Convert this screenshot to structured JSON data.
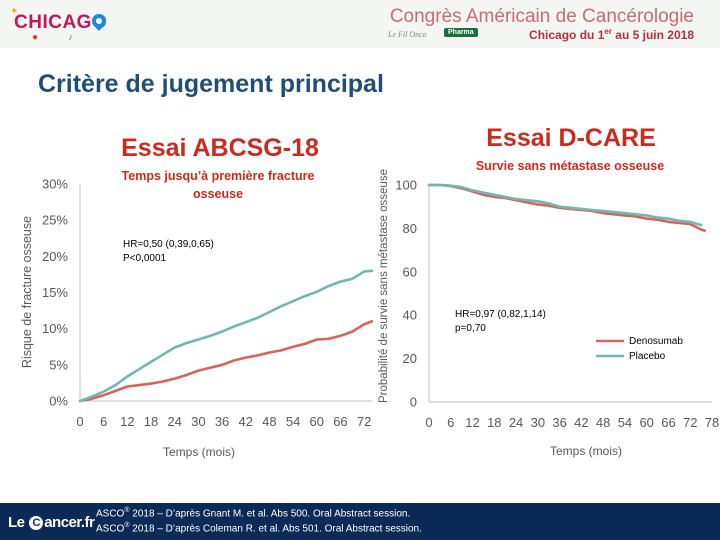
{
  "header": {
    "logo_text": "CHICAGO",
    "congress_title": "Congrès Américain de Cancérologie",
    "congress_sub_prefix": "Chicago du 1",
    "congress_sub_sup": "er",
    "congress_sub_suffix": " au 5 juin 2018",
    "fil_label": "Le Fil Onco",
    "pharma_label": "Pharma"
  },
  "slide": {
    "title": "Critère de jugement principal"
  },
  "colors": {
    "denosumab": "#d9635a",
    "placebo": "#6fb8b2",
    "title_blue": "#1f4e79",
    "essai_red": "#cc2a1e",
    "axis_text": "#595959"
  },
  "chart_data": [
    {
      "type": "line",
      "title": "Essai ABCSG-18",
      "subtitle": [
        "Temps jusqu’à première fracture",
        "osseuse"
      ],
      "xlabel": "Temps (mois)",
      "ylabel": "Risque de fracture osseuse",
      "xlim": [
        0,
        74
      ],
      "ylim": [
        0,
        30
      ],
      "x_ticks": [
        0,
        6,
        12,
        18,
        24,
        30,
        36,
        42,
        48,
        54,
        60,
        66,
        72
      ],
      "x_tick_labels": [
        "0",
        "6",
        "12",
        "18",
        "24",
        "30",
        "36",
        "42",
        "48",
        "54",
        "60",
        "66",
        "72"
      ],
      "y_ticks": [
        0,
        5,
        10,
        15,
        20,
        25,
        30
      ],
      "y_tick_labels": [
        "0%",
        "5%",
        "10%",
        "15%",
        "20%",
        "25%",
        "30%"
      ],
      "annotations": [
        "HR=0,50 (0,39,0,65)",
        "P<0,0001"
      ],
      "grid": false,
      "series": [
        {
          "color": "#d9635a",
          "x": [
            0,
            3,
            6,
            9,
            12,
            15,
            18,
            21,
            24,
            27,
            30,
            33,
            36,
            39,
            42,
            45,
            48,
            51,
            54,
            57,
            60,
            63,
            66,
            69,
            72,
            74
          ],
          "y": [
            0,
            0.3,
            0.8,
            1.4,
            2.0,
            2.2,
            2.4,
            2.7,
            3.1,
            3.6,
            4.2,
            4.6,
            5.0,
            5.6,
            6.0,
            6.3,
            6.7,
            7.0,
            7.5,
            7.9,
            8.5,
            8.6,
            9.0,
            9.6,
            10.6,
            11.0
          ]
        },
        {
          "color": "#6fb8b2",
          "x": [
            0,
            3,
            6,
            9,
            12,
            15,
            18,
            21,
            24,
            27,
            30,
            33,
            36,
            39,
            42,
            45,
            48,
            51,
            54,
            57,
            60,
            63,
            66,
            69,
            72,
            74
          ],
          "y": [
            0,
            0.6,
            1.3,
            2.2,
            3.4,
            4.4,
            5.4,
            6.4,
            7.4,
            8.0,
            8.5,
            9.0,
            9.6,
            10.3,
            10.9,
            11.5,
            12.3,
            13.1,
            13.8,
            14.5,
            15.1,
            15.9,
            16.5,
            16.9,
            17.9,
            18.0
          ]
        }
      ]
    },
    {
      "type": "line",
      "title": "Essai D-CARE",
      "subtitle": [
        "Survie sans métastase osseuse"
      ],
      "xlabel": "Temps (mois)",
      "ylabel": "Probabilité de survie sans métastase osseuse",
      "xlim": [
        0,
        78
      ],
      "ylim": [
        0,
        100
      ],
      "x_ticks": [
        0,
        6,
        12,
        18,
        24,
        30,
        36,
        42,
        48,
        54,
        60,
        66,
        72,
        78
      ],
      "x_tick_labels": [
        "0",
        "6",
        "12",
        "18",
        "24",
        "30",
        "36",
        "42",
        "48",
        "54",
        "60",
        "66",
        "72",
        "78"
      ],
      "y_ticks": [
        0,
        20,
        40,
        60,
        80,
        100
      ],
      "y_tick_labels": [
        "0",
        "20",
        "40",
        "60",
        "80",
        "100"
      ],
      "annotations": [
        "HR=0,97 (0,82,1,14)",
        "p=0,70"
      ],
      "legend": "bottom-right",
      "grid": false,
      "series": [
        {
          "name": "Denosumab",
          "color": "#d9635a",
          "x": [
            0,
            3,
            6,
            9,
            12,
            15,
            18,
            21,
            24,
            27,
            30,
            33,
            36,
            39,
            42,
            45,
            48,
            51,
            54,
            57,
            60,
            63,
            66,
            69,
            72,
            75,
            76
          ],
          "y": [
            100,
            100,
            99.5,
            98.5,
            97,
            95.5,
            94.5,
            94,
            93,
            92,
            91,
            90.5,
            89.5,
            89,
            88.5,
            88,
            87,
            86.5,
            86,
            85.5,
            84.5,
            84,
            83,
            82.5,
            82,
            79.5,
            79
          ]
        },
        {
          "name": "Placebo",
          "color": "#6fb8b2",
          "x": [
            0,
            3,
            6,
            9,
            12,
            15,
            18,
            21,
            24,
            27,
            30,
            33,
            36,
            39,
            42,
            45,
            48,
            51,
            54,
            57,
            60,
            63,
            66,
            69,
            72,
            75
          ],
          "y": [
            100,
            100,
            99.7,
            99,
            97.5,
            96.5,
            95.5,
            94.5,
            93.5,
            93,
            92.5,
            91.5,
            90,
            89.5,
            89,
            88.5,
            88,
            87.5,
            87,
            86.5,
            86,
            85,
            84.5,
            83.5,
            83,
            81.5
          ]
        }
      ]
    }
  ],
  "footer": {
    "logo_pre": "Le ",
    "logo_c": "C",
    "logo_post": "ancer.fr",
    "ref1_a": "ASCO",
    "ref1_sup": "®",
    "ref1_b": " 2018 – D’après Gnant M. et al. Abs 500. Oral Abstract session.",
    "ref2_a": "ASCO",
    "ref2_sup": "®",
    "ref2_b": " 2018 – D’après Coleman R. et al. Abs 501. Oral Abstract session."
  }
}
